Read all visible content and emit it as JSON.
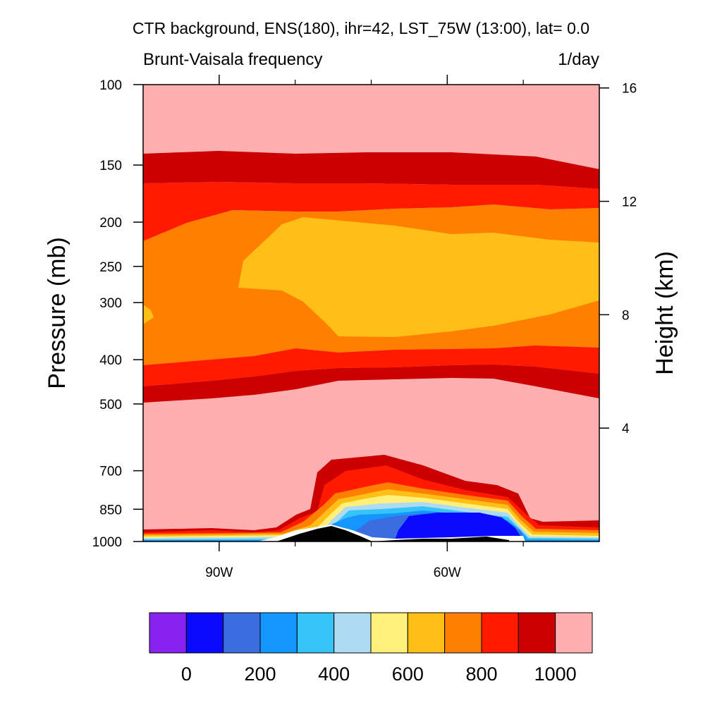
{
  "chart_data": {
    "type": "heatmap",
    "title": "CTR background, ENS(180), ihr=42, LST_75W (13:00), lat=  0.0",
    "subtitle_left": "Brunt-Vaisala frequency",
    "subtitle_right": "1/day",
    "ylabel": "Pressure (mb)",
    "y2label": "Height (km)",
    "y_scale": "log",
    "ylim": [
      1000,
      100
    ],
    "y_ticks": [
      100,
      150,
      200,
      250,
      300,
      400,
      500,
      700,
      850,
      1000
    ],
    "y_tick_labels": [
      "100",
      "150",
      "200",
      "250",
      "300",
      "400",
      "500",
      "700",
      "850",
      "1000"
    ],
    "y2_ticks": [
      16,
      12,
      8,
      4
    ],
    "y2_tick_labels": [
      "16",
      "12",
      "8",
      "4"
    ],
    "xlim": [
      -100,
      -40
    ],
    "x_ticks": [
      -90,
      -60
    ],
    "x_tick_labels": [
      "90W",
      "60W"
    ],
    "x_minor_ticks": [
      -80,
      -70,
      -50
    ],
    "levels": [
      0,
      100,
      200,
      300,
      400,
      500,
      600,
      700,
      800,
      900,
      1000
    ],
    "colors": [
      "#8822ee",
      "#0a0aff",
      "#3a6ee0",
      "#1496ff",
      "#36c3f7",
      "#aedaf2",
      "#fff07a",
      "#ffbf17",
      "#ff8000",
      "#ff1a00",
      "#cc0000",
      "#ffafaf"
    ],
    "colorbar_labels": [
      "0",
      "200",
      "400",
      "600",
      "800",
      "1000"
    ],
    "colorbar_label_values": [
      0,
      200,
      400,
      600,
      800,
      1000
    ],
    "terrain_color": "#000000",
    "colors_that_matter": {
      "terrain": "#000000",
      "background": "#ffffff"
    }
  }
}
